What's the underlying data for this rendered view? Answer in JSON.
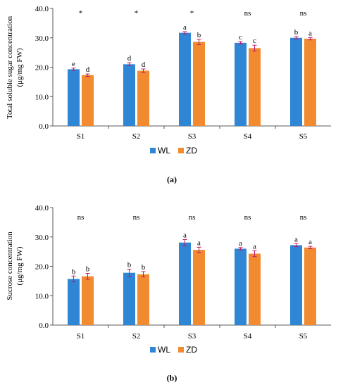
{
  "colors": {
    "WL": "#2E86D4",
    "ZD": "#F28B30",
    "err": "#C0186A",
    "axis": "#595959"
  },
  "chart_data": [
    {
      "type": "bar",
      "panel_label": "(a)",
      "ylabel_line1": "Total soluble sugar concentration",
      "ylabel_line2": "(μg/mg FW)",
      "ylim": [
        0,
        40
      ],
      "yticks": [
        "0.0",
        "10.0",
        "20.0",
        "30.0",
        "40.0"
      ],
      "categories": [
        "S1",
        "S2",
        "S3",
        "S4",
        "S5"
      ],
      "significance": [
        "*",
        "*",
        "*",
        "ns",
        "ns"
      ],
      "legend_placement": "bottom-center",
      "series": [
        {
          "name": "WL",
          "values": [
            19.3,
            21.0,
            31.7,
            28.3,
            30.0
          ],
          "errors": [
            0.4,
            0.5,
            0.4,
            0.4,
            0.4
          ],
          "letters": [
            "e",
            "d",
            "a",
            "c",
            "b"
          ]
        },
        {
          "name": "ZD",
          "values": [
            17.3,
            18.8,
            28.6,
            26.5,
            29.7
          ],
          "errors": [
            0.4,
            0.6,
            0.9,
            1.0,
            0.4
          ],
          "letters": [
            "d",
            "d",
            "b",
            "c",
            "a"
          ]
        }
      ]
    },
    {
      "type": "bar",
      "panel_label": "(b)",
      "ylabel_line1": "Sucrose concentration",
      "ylabel_line2": "(μg/mg FW)",
      "ylim": [
        0,
        40
      ],
      "yticks": [
        "0.0",
        "10.0",
        "20.0",
        "30.0",
        "40.0"
      ],
      "categories": [
        "S1",
        "S2",
        "S3",
        "S4",
        "S5"
      ],
      "significance": [
        "ns",
        "ns",
        "ns",
        "ns",
        "ns"
      ],
      "legend_placement": "bottom-center",
      "series": [
        {
          "name": "WL",
          "values": [
            15.7,
            17.8,
            28.1,
            26.0,
            27.2
          ],
          "errors": [
            1.0,
            1.2,
            1.0,
            0.4,
            0.5
          ],
          "letters": [
            "b",
            "b",
            "a",
            "a",
            "a"
          ]
        },
        {
          "name": "ZD",
          "values": [
            16.6,
            17.3,
            25.6,
            24.3,
            26.4
          ],
          "errors": [
            1.0,
            0.9,
            0.9,
            1.0,
            0.4
          ],
          "letters": [
            "b",
            "b",
            "a",
            "a",
            "a"
          ]
        }
      ]
    }
  ]
}
